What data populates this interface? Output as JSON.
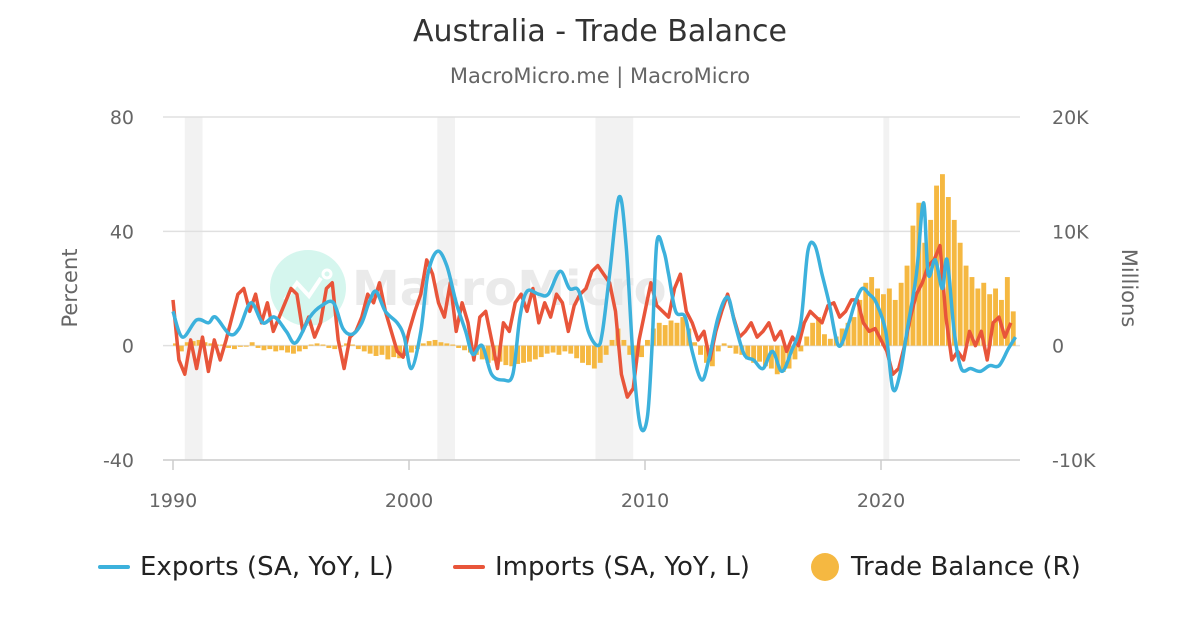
{
  "title": "Australia - Trade Balance",
  "subtitle": "MacroMicro.me | MacroMicro",
  "watermark": "MacroMicro",
  "chart_data": {
    "type": "line+bar",
    "title": "Australia - Trade Balance",
    "ylabel_left": "Percent",
    "ylabel_right": "Millions",
    "ylim_left": [
      -40,
      80
    ],
    "ylim_right": [
      -10000,
      20000
    ],
    "left_ticks": [
      "80",
      "40",
      "0",
      "-40"
    ],
    "left_tick_values": [
      80,
      40,
      0,
      -40
    ],
    "right_ticks": [
      "20K",
      "10K",
      "0",
      "-10K"
    ],
    "right_tick_values": [
      20000,
      10000,
      0,
      -10000
    ],
    "x_ticks": [
      "1990",
      "2000",
      "2010",
      "2020"
    ],
    "x_tick_values": [
      1990,
      2000,
      2010,
      2020
    ],
    "grid": true,
    "legend_position": "bottom",
    "recession_bands": [
      [
        1990.5,
        1991.25
      ],
      [
        2001.2,
        2001.95
      ],
      [
        2007.9,
        2009.5
      ],
      [
        2020.1,
        2020.35
      ]
    ],
    "colors": {
      "exports": "#3cb1dc",
      "imports": "#e8553a",
      "trade_balance": "#f5b841",
      "recession": "#f2f2f2"
    },
    "series": [
      {
        "name": "Exports (SA, YoY, L)",
        "axis": "left",
        "kind": "line",
        "points": [
          [
            1990.0,
            12
          ],
          [
            1990.4,
            3
          ],
          [
            1991.0,
            9
          ],
          [
            1991.5,
            8
          ],
          [
            1991.8,
            10
          ],
          [
            1992.4,
            4
          ],
          [
            1992.8,
            6
          ],
          [
            1993.3,
            15
          ],
          [
            1993.8,
            8
          ],
          [
            1994.3,
            10
          ],
          [
            1994.8,
            5
          ],
          [
            1995.2,
            1
          ],
          [
            1995.8,
            10
          ],
          [
            1996.3,
            14
          ],
          [
            1996.8,
            15
          ],
          [
            1997.2,
            6
          ],
          [
            1997.6,
            4
          ],
          [
            1998.0,
            8
          ],
          [
            1998.3,
            15
          ],
          [
            1998.6,
            19
          ],
          [
            1999.0,
            12
          ],
          [
            1999.5,
            8
          ],
          [
            1999.8,
            3
          ],
          [
            2000.1,
            -8
          ],
          [
            2000.5,
            5
          ],
          [
            2000.8,
            25
          ],
          [
            2001.2,
            33
          ],
          [
            2001.6,
            28
          ],
          [
            2002.0,
            15
          ],
          [
            2002.4,
            5
          ],
          [
            2002.7,
            -3
          ],
          [
            2003.1,
            0
          ],
          [
            2003.5,
            -10
          ],
          [
            2004.0,
            -12
          ],
          [
            2004.4,
            -10
          ],
          [
            2004.7,
            10
          ],
          [
            2005.0,
            19
          ],
          [
            2005.5,
            18
          ],
          [
            2005.9,
            18
          ],
          [
            2006.4,
            26
          ],
          [
            2006.8,
            20
          ],
          [
            2007.2,
            19
          ],
          [
            2007.6,
            5
          ],
          [
            2008.0,
            0
          ],
          [
            2008.2,
            5
          ],
          [
            2008.5,
            25
          ],
          [
            2008.9,
            52
          ],
          [
            2009.2,
            35
          ],
          [
            2009.5,
            -5
          ],
          [
            2009.8,
            -28
          ],
          [
            2010.1,
            -25
          ],
          [
            2010.3,
            0
          ],
          [
            2010.5,
            36
          ],
          [
            2010.8,
            33
          ],
          [
            2011.0,
            25
          ],
          [
            2011.3,
            12
          ],
          [
            2011.7,
            10
          ],
          [
            2012.0,
            -2
          ],
          [
            2012.4,
            -12
          ],
          [
            2012.7,
            -5
          ],
          [
            2013.1,
            10
          ],
          [
            2013.5,
            17
          ],
          [
            2013.8,
            8
          ],
          [
            2014.2,
            -3
          ],
          [
            2014.6,
            -5
          ],
          [
            2015.0,
            -8
          ],
          [
            2015.4,
            -2
          ],
          [
            2015.8,
            -9
          ],
          [
            2016.2,
            -2
          ],
          [
            2016.6,
            8
          ],
          [
            2016.9,
            33
          ],
          [
            2017.2,
            35
          ],
          [
            2017.5,
            25
          ],
          [
            2017.8,
            15
          ],
          [
            2018.2,
            0
          ],
          [
            2018.6,
            7
          ],
          [
            2018.9,
            15
          ],
          [
            2019.2,
            20
          ],
          [
            2019.5,
            18
          ],
          [
            2019.8,
            15
          ],
          [
            2020.2,
            5
          ],
          [
            2020.5,
            -15
          ],
          [
            2020.8,
            -10
          ],
          [
            2021.1,
            5
          ],
          [
            2021.5,
            25
          ],
          [
            2021.8,
            50
          ],
          [
            2022.0,
            25
          ],
          [
            2022.3,
            30
          ],
          [
            2022.6,
            20
          ],
          [
            2022.8,
            30
          ],
          [
            2023.1,
            5
          ],
          [
            2023.4,
            -8
          ],
          [
            2023.8,
            -8
          ],
          [
            2024.2,
            -9
          ],
          [
            2024.6,
            -7
          ],
          [
            2025.0,
            -7
          ],
          [
            2025.4,
            -1
          ],
          [
            2025.7,
            3
          ]
        ]
      },
      {
        "name": "Imports (SA, YoY, L)",
        "axis": "left",
        "kind": "line",
        "start": 1990.0,
        "step": 0.25,
        "values": [
          16,
          -5,
          -10,
          2,
          -8,
          3,
          -9,
          2,
          -5,
          2,
          10,
          18,
          20,
          12,
          18,
          8,
          15,
          5,
          10,
          15,
          20,
          18,
          5,
          10,
          3,
          8,
          20,
          22,
          2,
          -8,
          3,
          5,
          10,
          18,
          15,
          22,
          12,
          5,
          -2,
          -4,
          5,
          12,
          18,
          30,
          25,
          15,
          10,
          22,
          5,
          15,
          8,
          -5,
          10,
          12,
          2,
          -8,
          8,
          5,
          15,
          18,
          12,
          20,
          8,
          15,
          10,
          18,
          15,
          5,
          14,
          18,
          20,
          26,
          28,
          25,
          22,
          12,
          -10,
          -18,
          -15,
          2,
          12,
          22,
          14,
          12,
          10,
          20,
          25,
          12,
          8,
          2,
          5,
          -5,
          5,
          12,
          18,
          10,
          3,
          5,
          8,
          3,
          5,
          8,
          2,
          5,
          -2,
          3,
          0,
          8,
          12,
          10,
          8,
          14,
          15,
          10,
          12,
          16,
          16,
          8,
          5,
          6,
          2,
          -2,
          -10,
          -8,
          0,
          10,
          18,
          22,
          28,
          30,
          35,
          10,
          -5,
          -2,
          -5,
          5,
          0,
          5,
          -5,
          8,
          10,
          3,
          8
        ]
      },
      {
        "name": "Trade Balance (R)",
        "axis": "right",
        "kind": "bar",
        "start": 1990.0,
        "step": 0.25,
        "values": [
          200,
          -500,
          300,
          400,
          500,
          300,
          200,
          100,
          100,
          -200,
          -300,
          -100,
          0,
          300,
          -200,
          -400,
          -300,
          -500,
          -400,
          -600,
          -700,
          -500,
          -300,
          100,
          200,
          100,
          -200,
          -300,
          0,
          200,
          100,
          -300,
          -500,
          -700,
          -900,
          -800,
          -1200,
          -1000,
          -1100,
          -900,
          -600,
          -300,
          200,
          400,
          500,
          300,
          200,
          100,
          -200,
          -400,
          -600,
          -800,
          -1200,
          -1500,
          -1300,
          -1400,
          -1700,
          -1800,
          -1600,
          -1500,
          -1400,
          -1200,
          -1000,
          -700,
          -600,
          -800,
          -500,
          -700,
          -1100,
          -1500,
          -1700,
          -2000,
          -1500,
          -800,
          500,
          1500,
          500,
          -800,
          -1500,
          -1000,
          500,
          1500,
          2000,
          1800,
          2200,
          2000,
          2500,
          1500,
          300,
          -800,
          -1500,
          -1800,
          -500,
          200,
          -200,
          -700,
          -800,
          -1200,
          -1500,
          -1400,
          -1800,
          -2000,
          -2500,
          -2300,
          -2000,
          -1200,
          -500,
          800,
          2000,
          2500,
          1000,
          600,
          800,
          1500,
          2000,
          2500,
          4000,
          5500,
          6000,
          5000,
          4500,
          5000,
          4000,
          5500,
          7000,
          10500,
          12500,
          9000,
          11000,
          14000,
          15000,
          13000,
          11000,
          9000,
          7000,
          6000,
          5000,
          5500,
          4500,
          5000,
          4000,
          6000,
          3000
        ]
      }
    ]
  },
  "legend": [
    {
      "label": "Exports (SA, YoY, L)"
    },
    {
      "label": "Imports (SA, YoY, L)"
    },
    {
      "label": "Trade Balance (R)"
    }
  ]
}
